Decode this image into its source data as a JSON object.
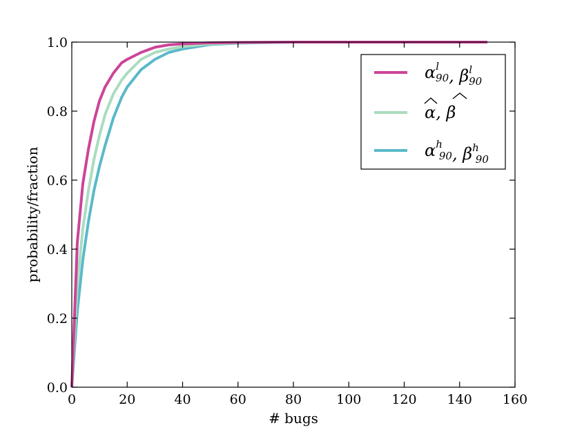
{
  "chart_data": {
    "type": "line",
    "title": "",
    "xlabel": "# bugs",
    "ylabel": "probability/fraction",
    "xlim": [
      0,
      160
    ],
    "ylim": [
      0.0,
      1.0
    ],
    "xticks": [
      0,
      20,
      40,
      60,
      80,
      100,
      120,
      140,
      160
    ],
    "yticks": [
      0.0,
      0.2,
      0.4,
      0.6,
      0.8,
      1.0
    ],
    "x_tick_labels": [
      "0",
      "20",
      "40",
      "60",
      "80",
      "100",
      "120",
      "140",
      "160"
    ],
    "y_tick_labels": [
      "0.0",
      "0.2",
      "0.4",
      "0.6",
      "0.8",
      "1.0"
    ],
    "grid": false,
    "legend_position": "top-right",
    "series": [
      {
        "name": "α90l, β90l",
        "color": "#cc4499",
        "x": [
          0,
          2,
          4,
          6,
          8,
          10,
          12,
          15,
          18,
          20,
          25,
          30,
          35,
          40,
          50,
          60,
          80,
          100,
          120,
          150
        ],
        "y": [
          0.0,
          0.42,
          0.59,
          0.69,
          0.77,
          0.83,
          0.87,
          0.91,
          0.94,
          0.95,
          0.97,
          0.985,
          0.992,
          0.995,
          0.998,
          0.999,
          1.0,
          1.0,
          1.0,
          1.0
        ]
      },
      {
        "name": "α̂, β̂",
        "color": "#aadcc0",
        "x": [
          0,
          2,
          4,
          6,
          8,
          10,
          12,
          15,
          18,
          20,
          25,
          30,
          35,
          40,
          50,
          60,
          80,
          100,
          120,
          150
        ],
        "y": [
          0.0,
          0.3,
          0.46,
          0.57,
          0.66,
          0.73,
          0.79,
          0.85,
          0.89,
          0.91,
          0.95,
          0.97,
          0.98,
          0.987,
          0.995,
          0.998,
          1.0,
          1.0,
          1.0,
          1.0
        ]
      },
      {
        "name": "α90h, β90h",
        "color": "#5ab9c9",
        "x": [
          0,
          2,
          4,
          6,
          8,
          10,
          12,
          15,
          18,
          20,
          25,
          30,
          35,
          40,
          50,
          60,
          80,
          100,
          120,
          150
        ],
        "y": [
          0.0,
          0.22,
          0.37,
          0.48,
          0.57,
          0.64,
          0.7,
          0.78,
          0.84,
          0.87,
          0.92,
          0.95,
          0.97,
          0.98,
          0.993,
          0.997,
          1.0,
          1.0,
          1.0,
          1.0
        ]
      }
    ],
    "legend_entries": [
      {
        "base": [
          "α",
          "β"
        ],
        "sub": "90",
        "sup": "l",
        "color": "#cc4499"
      },
      {
        "hat": [
          "α",
          "β"
        ],
        "color": "#aadcc0"
      },
      {
        "base": [
          "α",
          "β"
        ],
        "sub": "90",
        "sup": "h",
        "color": "#5ab9c9"
      }
    ]
  }
}
